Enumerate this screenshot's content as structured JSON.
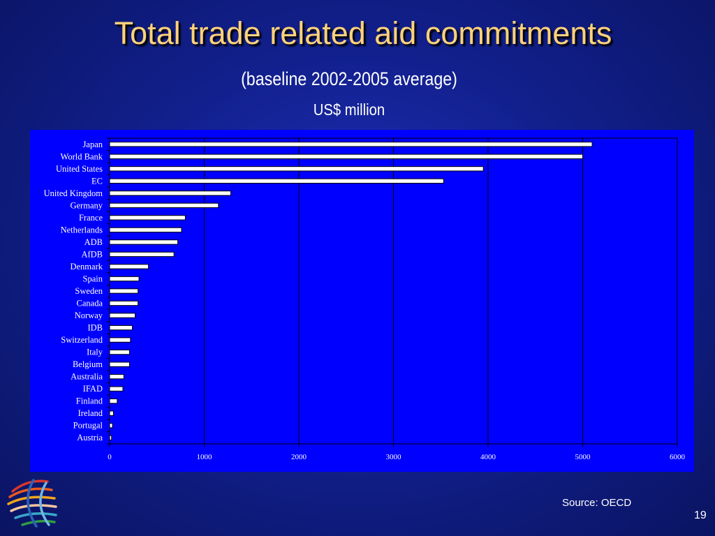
{
  "slide": {
    "title": "Total trade related aid commitments",
    "subtitle": "(baseline 2002-2005 average)",
    "units": "US$ million",
    "source": "Source:  OECD",
    "page_number": "19"
  },
  "colors": {
    "background": "#12208e",
    "title": "#ffd27a",
    "plot_area": "#0000ff",
    "bar_fill": "#ffffff",
    "bar_stroke": "#000000"
  },
  "chart_data": {
    "type": "bar",
    "orientation": "horizontal",
    "categories": [
      "Japan",
      "World Bank",
      "United States",
      "EC",
      "United Kingdom",
      "Germany",
      "France",
      "Netherlands",
      "ADB",
      "AfDB",
      "Denmark",
      "Spain",
      "Sweden",
      "Canada",
      "Norway",
      "IDB",
      "Switzerland",
      "Italy",
      "Belgium",
      "Australia",
      "IFAD",
      "Finland",
      "Ireland",
      "Portugal",
      "Austria"
    ],
    "values": [
      5100,
      5000,
      3950,
      3530,
      1280,
      1150,
      800,
      760,
      720,
      680,
      410,
      310,
      300,
      300,
      270,
      240,
      220,
      210,
      210,
      150,
      140,
      80,
      40,
      30,
      20
    ],
    "xlim": [
      0,
      6000
    ],
    "xticks": [
      0,
      1000,
      2000,
      3000,
      4000,
      5000,
      6000
    ],
    "xtick_labels": [
      "0",
      "1000",
      "2000",
      "3000",
      "4000",
      "5000",
      "6000"
    ],
    "grid": "vertical",
    "legend": "none"
  }
}
